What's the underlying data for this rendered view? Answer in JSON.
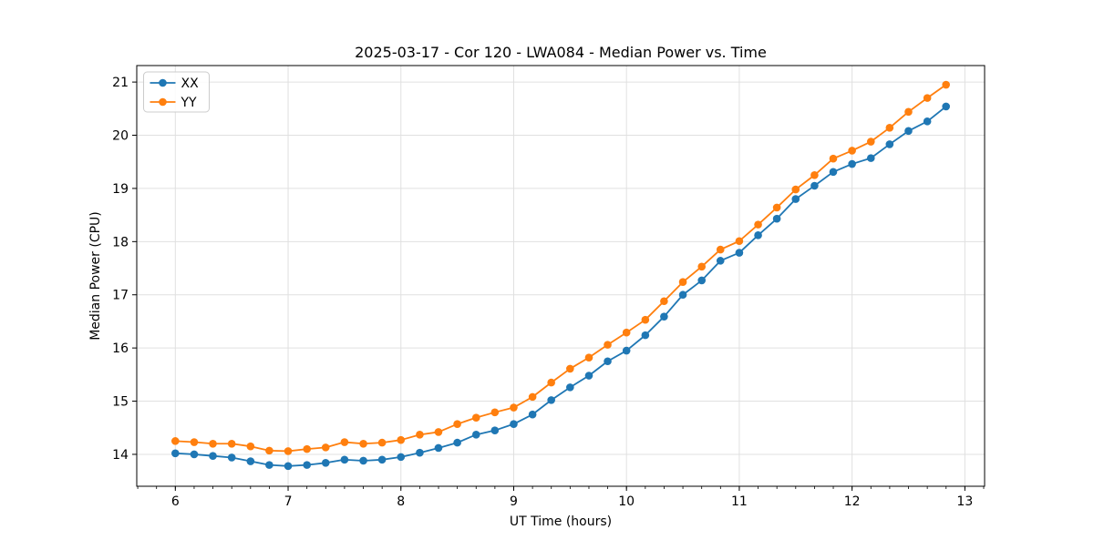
{
  "figure": {
    "background": "#ffffff"
  },
  "chart_data": {
    "type": "line",
    "title": "2025-03-17 - Cor 120 - LWA084 - Median Power vs. Time",
    "xlabel": "UT Time (hours)",
    "ylabel": "Median Power (CPU)",
    "xlim": [
      5.658,
      13.175
    ],
    "ylim": [
      13.4,
      21.31
    ],
    "xticks": [
      6,
      7,
      8,
      9,
      10,
      11,
      12,
      13
    ],
    "yticks": [
      14,
      15,
      16,
      17,
      18,
      19,
      20,
      21
    ],
    "minor_xtick_step_hours": 0.16667,
    "grid": true,
    "grid_color": "#e0e0e0",
    "spine_color": "#000000",
    "legend_position": "upper-left",
    "x": [
      6.0,
      6.167,
      6.333,
      6.5,
      6.667,
      6.833,
      7.0,
      7.167,
      7.333,
      7.5,
      7.667,
      7.833,
      8.0,
      8.167,
      8.333,
      8.5,
      8.667,
      8.833,
      9.0,
      9.167,
      9.333,
      9.5,
      9.667,
      9.833,
      10.0,
      10.167,
      10.333,
      10.5,
      10.667,
      10.833,
      11.0,
      11.167,
      11.333,
      11.5,
      11.667,
      11.833,
      12.0,
      12.167,
      12.333,
      12.5,
      12.667,
      12.833
    ],
    "series": [
      {
        "name": "XX",
        "color": "#1f77b4",
        "values": [
          14.02,
          14.0,
          13.97,
          13.94,
          13.87,
          13.8,
          13.78,
          13.8,
          13.84,
          13.9,
          13.88,
          13.9,
          13.95,
          14.03,
          14.12,
          14.22,
          14.37,
          14.45,
          14.57,
          14.75,
          15.02,
          15.26,
          15.48,
          15.75,
          15.95,
          16.24,
          16.59,
          17.0,
          17.27,
          17.64,
          17.79,
          18.12,
          18.43,
          18.8,
          19.05,
          19.31,
          19.46,
          19.57,
          19.83,
          20.08,
          20.26,
          20.54
        ]
      },
      {
        "name": "YY",
        "color": "#ff7f0e",
        "values": [
          14.25,
          14.23,
          14.2,
          14.2,
          14.15,
          14.07,
          14.06,
          14.1,
          14.13,
          14.23,
          14.2,
          14.22,
          14.27,
          14.37,
          14.42,
          14.57,
          14.69,
          14.79,
          14.88,
          15.08,
          15.35,
          15.61,
          15.82,
          16.06,
          16.29,
          16.53,
          16.88,
          17.24,
          17.53,
          17.85,
          18.01,
          18.32,
          18.64,
          18.98,
          19.25,
          19.56,
          19.71,
          19.88,
          20.14,
          20.44,
          20.7,
          20.95
        ]
      }
    ]
  }
}
